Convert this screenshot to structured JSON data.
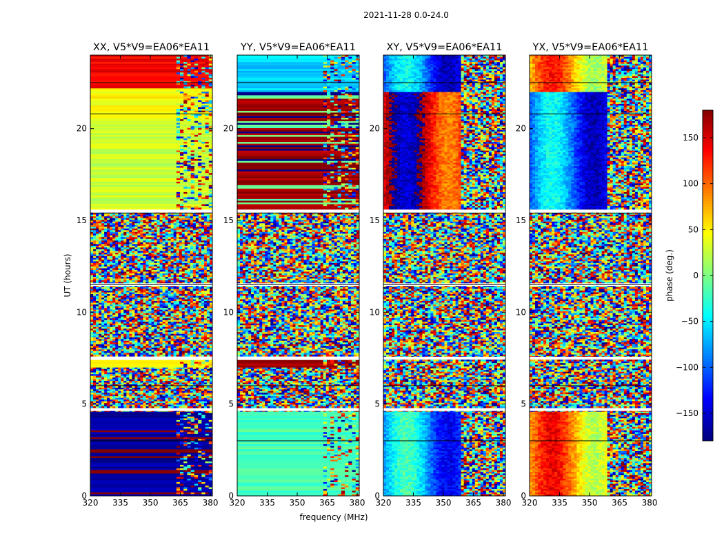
{
  "chart_data": {
    "type": "heatmap",
    "suptitle": "2021-11-28 0.0-24.0",
    "xlabel": "frequency (MHz)",
    "ylabel": "UT (hours)",
    "colorbar_label": "phase (deg.)",
    "colormap": "jet",
    "color_range": [
      -180,
      180
    ],
    "colorbar_ticks": [
      -150,
      -100,
      -50,
      0,
      50,
      100,
      150
    ],
    "colorbar_tick_labels": [
      "−150",
      "−100",
      "−50",
      "0",
      "50",
      "100",
      "150"
    ],
    "xlim": [
      320,
      381
    ],
    "ylim": [
      0,
      24
    ],
    "xticks": [
      320,
      335,
      350,
      365,
      380
    ],
    "yticks": [
      0,
      5,
      10,
      15,
      20
    ],
    "blank_time_rows_hours": [
      7.5,
      4.7,
      11.5,
      15.5
    ],
    "panels": [
      {
        "title": "XX, V5*V9=EA06*EA11",
        "segments": [
          {
            "ut_range": [
              0,
              4.6
            ],
            "phase_deg": -170,
            "pattern": "smooth"
          },
          {
            "ut_range": [
              4.6,
              7.0
            ],
            "phase_deg": 0,
            "pattern": "noise"
          },
          {
            "ut_range": [
              7.0,
              7.4
            ],
            "phase_deg": 40,
            "pattern": "smooth"
          },
          {
            "ut_range": [
              7.6,
              15.5
            ],
            "phase_deg": 0,
            "pattern": "noise"
          },
          {
            "ut_range": [
              15.6,
              20.6
            ],
            "phase_deg": 25,
            "pattern": "smooth"
          },
          {
            "ut_range": [
              20.6,
              22.2
            ],
            "phase_deg": 45,
            "pattern": "smooth"
          },
          {
            "ut_range": [
              22.2,
              24.0
            ],
            "phase_deg": 140,
            "pattern": "smooth"
          }
        ]
      },
      {
        "title": "YY, V5*V9=EA06*EA11",
        "segments": [
          {
            "ut_range": [
              0,
              4.6
            ],
            "phase_deg": -20,
            "pattern": "smooth"
          },
          {
            "ut_range": [
              4.6,
              7.0
            ],
            "phase_deg": 0,
            "pattern": "noise"
          },
          {
            "ut_range": [
              7.0,
              7.4
            ],
            "phase_deg": 165,
            "pattern": "smooth"
          },
          {
            "ut_range": [
              7.6,
              15.5
            ],
            "phase_deg": 0,
            "pattern": "noise"
          },
          {
            "ut_range": [
              15.6,
              22.0
            ],
            "phase_deg": 170,
            "pattern": "banded"
          },
          {
            "ut_range": [
              22.0,
              24.0
            ],
            "phase_deg": -60,
            "pattern": "smooth"
          }
        ]
      },
      {
        "title": "XY, V5*V9=EA06*EA11",
        "segments": [
          {
            "ut_range": [
              0,
              4.6
            ],
            "phase_deg": -80,
            "pattern": "striped"
          },
          {
            "ut_range": [
              4.6,
              15.5
            ],
            "phase_deg": 0,
            "pattern": "noise"
          },
          {
            "ut_range": [
              15.6,
              22.0
            ],
            "phase_deg": 150,
            "pattern": "striped"
          },
          {
            "ut_range": [
              22.0,
              24.0
            ],
            "phase_deg": -100,
            "pattern": "striped"
          }
        ]
      },
      {
        "title": "YX, V5*V9=EA06*EA11",
        "segments": [
          {
            "ut_range": [
              0,
              4.6
            ],
            "phase_deg": 80,
            "pattern": "striped"
          },
          {
            "ut_range": [
              4.6,
              15.5
            ],
            "phase_deg": 0,
            "pattern": "noise"
          },
          {
            "ut_range": [
              15.6,
              22.0
            ],
            "phase_deg": -100,
            "pattern": "striped"
          },
          {
            "ut_range": [
              22.0,
              24.0
            ],
            "phase_deg": 70,
            "pattern": "striped"
          }
        ]
      }
    ]
  }
}
